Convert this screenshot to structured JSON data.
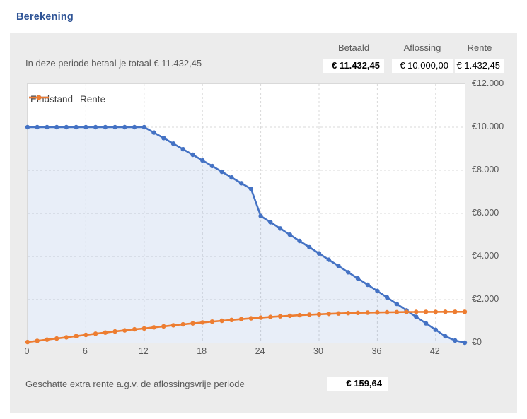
{
  "title": "Berekening",
  "summary": {
    "note": "In deze periode betaal je totaal € 11.432,45",
    "columns": [
      {
        "label": "Betaald",
        "value": "€ 11.432,45"
      },
      {
        "label": "Aflossing",
        "value": "€ 10.000,00"
      },
      {
        "label": "Rente",
        "value": "€ 1.432,45"
      }
    ]
  },
  "footer": {
    "label": "Geschatte extra rente a.g.v. de aflossingsvrije periode",
    "value": "€ 159,64"
  },
  "colors": {
    "title_blue": "#2F5496",
    "panel_gray": "#ECECEC",
    "grid_gray": "#D9D9D9",
    "text_gray": "#595959",
    "eindstand_blue": "#4472C4",
    "rente_orange": "#ED7D31",
    "area_fill": "rgba(68,114,196,0.12)"
  },
  "chart_data": {
    "type": "line",
    "title": "",
    "xlabel": "",
    "ylabel": "",
    "xlim": [
      0,
      45
    ],
    "ylim": [
      0,
      12000
    ],
    "grid": "dashed",
    "legend_position": "top-left-inside",
    "x_ticks": [
      0,
      6,
      12,
      18,
      24,
      30,
      36,
      42
    ],
    "y_tick_values": [
      0,
      2000,
      4000,
      6000,
      8000,
      10000,
      12000
    ],
    "y_tick_labels": [
      "€0",
      "€2.000",
      "€4.000",
      "€6.000",
      "€8.000",
      "€10.000",
      "€12.000"
    ],
    "x_months": [
      0,
      1,
      2,
      3,
      4,
      5,
      6,
      7,
      8,
      9,
      10,
      11,
      12,
      13,
      14,
      15,
      16,
      17,
      18,
      19,
      20,
      21,
      22,
      23,
      24,
      25,
      26,
      27,
      28,
      29,
      30,
      31,
      32,
      33,
      34,
      35,
      36,
      37,
      38,
      39,
      40,
      41,
      42,
      43,
      44,
      45
    ],
    "series": [
      {
        "name": "Eindstand",
        "color": "#4472C4",
        "fill": true,
        "values": [
          10000,
          10000,
          10000,
          10000,
          10000,
          10000,
          10000,
          10000,
          10000,
          10000,
          10000,
          10000,
          10000,
          9750,
          9500,
          9240,
          8980,
          8720,
          8460,
          8200,
          7930,
          7670,
          7400,
          7140,
          5880,
          5590,
          5300,
          5010,
          4720,
          4430,
          4140,
          3850,
          3560,
          3270,
          2980,
          2690,
          2400,
          2100,
          1800,
          1500,
          1200,
          900,
          600,
          300,
          100,
          0
        ]
      },
      {
        "name": "Rente",
        "color": "#ED7D31",
        "fill": false,
        "values": [
          30,
          85,
          140,
          195,
          250,
          305,
          360,
          415,
          470,
          520,
          570,
          620,
          660,
          710,
          758,
          805,
          850,
          894,
          937,
          978,
          1018,
          1056,
          1093,
          1128,
          1162,
          1193,
          1222,
          1249,
          1274,
          1297,
          1318,
          1337,
          1354,
          1369,
          1382,
          1393,
          1402,
          1410,
          1417,
          1422,
          1426,
          1429,
          1431,
          1432,
          1432,
          1432
        ]
      }
    ]
  }
}
